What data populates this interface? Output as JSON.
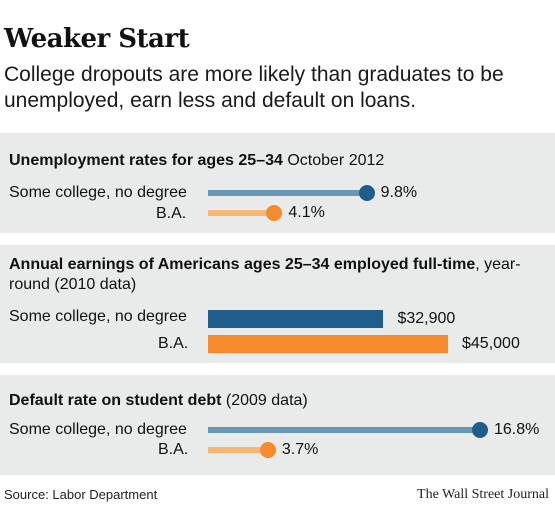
{
  "header": {
    "title": "Weaker Start",
    "subtitle": "College dropouts are more likely than graduates to be unemployed, earn less and default on loans."
  },
  "colors": {
    "dark_blue": "#1f5e8c",
    "light_blue": "#6a97b6",
    "orange": "#f58a2e",
    "light_orange": "#f9b574",
    "panel_bg": "#e9eaea"
  },
  "panels": [
    {
      "title_bold": "Unemployment rates for ages 25–34",
      "title_regular": " October 2012"
    },
    {
      "title_bold": "Annual earnings of Americans ages 25–34 employed full-time",
      "title_regular": ", year-round (2010 data)"
    },
    {
      "title_bold": "Default rate on student debt",
      "title_regular": " (2009 data)"
    }
  ],
  "chart_data": [
    {
      "type": "bar",
      "style": "dot-bar",
      "title": "Unemployment rates for ages 25–34 October 2012",
      "categories": [
        "Some college, no degree",
        "B.A."
      ],
      "values": [
        9.8,
        4.1
      ],
      "value_labels": [
        "9.8%",
        "4.1%"
      ],
      "unit": "%"
    },
    {
      "type": "bar",
      "title": "Annual earnings of Americans ages 25–34 employed full-time, year-round (2010 data)",
      "categories": [
        "Some college, no degree",
        "B.A."
      ],
      "values": [
        32900,
        45000
      ],
      "value_labels": [
        "$32,900",
        "$45,000"
      ],
      "unit": "$"
    },
    {
      "type": "bar",
      "style": "dot-bar",
      "title": "Default rate on student debt (2009 data)",
      "categories": [
        "Some college, no degree",
        "B.A."
      ],
      "values": [
        16.8,
        3.7
      ],
      "value_labels": [
        "16.8%",
        "3.7%"
      ],
      "unit": "%"
    }
  ],
  "footer": {
    "source": "Source: Labor Department",
    "publisher": "The Wall Street Journal"
  }
}
